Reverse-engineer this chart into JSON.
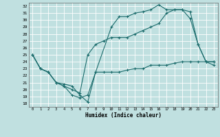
{
  "xlabel": "Humidex (Indice chaleur)",
  "bg_color": "#c0e0e0",
  "grid_color": "#ffffff",
  "line_color": "#1a6b6b",
  "xlim": [
    -0.5,
    23.5
  ],
  "ylim": [
    17.5,
    32.5
  ],
  "yticks": [
    18,
    19,
    20,
    21,
    22,
    23,
    24,
    25,
    26,
    27,
    28,
    29,
    30,
    31,
    32
  ],
  "xticks": [
    0,
    1,
    2,
    3,
    4,
    5,
    6,
    7,
    8,
    9,
    10,
    11,
    12,
    13,
    14,
    15,
    16,
    17,
    18,
    19,
    20,
    21,
    22,
    23
  ],
  "line1_x": [
    0,
    1,
    2,
    3,
    4,
    5,
    6,
    7,
    8,
    10,
    11,
    12,
    13,
    14,
    15,
    16,
    17,
    18,
    19,
    20,
    21,
    22,
    23
  ],
  "line1_y": [
    25.0,
    23.0,
    22.5,
    21.0,
    20.5,
    19.2,
    18.8,
    19.2,
    22.5,
    29.0,
    30.5,
    30.5,
    31.0,
    31.2,
    31.5,
    32.2,
    31.5,
    31.5,
    31.5,
    30.2,
    26.5,
    24.0,
    23.5
  ],
  "line2_x": [
    0,
    1,
    2,
    3,
    4,
    5,
    6,
    7,
    8,
    9,
    10,
    11,
    12,
    13,
    14,
    15,
    16,
    17,
    18,
    19,
    20,
    21,
    22,
    23
  ],
  "line2_y": [
    25.0,
    23.0,
    22.5,
    21.0,
    20.5,
    20.0,
    19.5,
    25.0,
    26.5,
    27.0,
    27.5,
    27.5,
    27.5,
    28.0,
    28.5,
    29.0,
    29.5,
    31.0,
    31.5,
    31.5,
    31.2,
    26.5,
    24.0,
    24.0
  ],
  "line3_x": [
    0,
    1,
    2,
    3,
    4,
    5,
    6,
    7,
    8,
    9,
    10,
    11,
    12,
    13,
    14,
    15,
    16,
    17,
    18,
    19,
    20,
    21,
    22,
    23
  ],
  "line3_y": [
    25.0,
    23.0,
    22.5,
    21.0,
    20.8,
    20.5,
    19.2,
    18.2,
    22.5,
    22.5,
    22.5,
    22.5,
    22.8,
    23.0,
    23.0,
    23.5,
    23.5,
    23.5,
    23.8,
    24.0,
    24.0,
    24.0,
    24.0,
    24.0
  ]
}
